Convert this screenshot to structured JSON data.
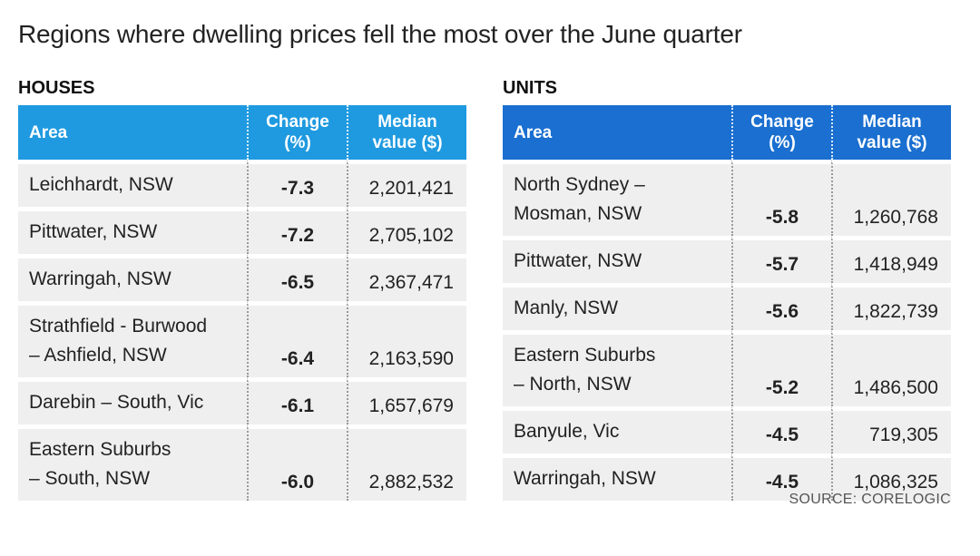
{
  "title": "Regions where dwelling prices fell the most over the June quarter",
  "houses": {
    "label": "HOUSES",
    "columns": [
      "Area",
      "Change (%)",
      "Median value ($)"
    ]
  },
  "units": {
    "label": "UNITS",
    "columns": [
      "Area",
      "Change (%)",
      "Median value ($)"
    ]
  },
  "source": "SOURCE: CORELOGIC",
  "colors": {
    "houses_header": "#1f9ae0",
    "units_header": "#1a6fd0",
    "row_bg": "#efefef"
  },
  "chart_data": [
    {
      "type": "table",
      "title": "HOUSES",
      "headers": [
        "Area",
        "Change (%)",
        "Median value ($)"
      ],
      "rows": [
        {
          "area": [
            "Leichhardt, NSW"
          ],
          "change": "-7.3",
          "median": "2,201,421"
        },
        {
          "area": [
            "Pittwater, NSW"
          ],
          "change": "-7.2",
          "median": "2,705,102"
        },
        {
          "area": [
            "Warringah, NSW"
          ],
          "change": "-6.5",
          "median": "2,367,471"
        },
        {
          "area": [
            "Strathfield - Burwood",
            "– Ashfield, NSW"
          ],
          "change": "-6.4",
          "median": "2,163,590"
        },
        {
          "area": [
            "Darebin – South, Vic"
          ],
          "change": "-6.1",
          "median": "1,657,679"
        },
        {
          "area": [
            "Eastern Suburbs",
            "– South, NSW"
          ],
          "change": "-6.0",
          "median": "2,882,532"
        }
      ]
    },
    {
      "type": "table",
      "title": "UNITS",
      "headers": [
        "Area",
        "Change (%)",
        "Median value ($)"
      ],
      "rows": [
        {
          "area": [
            "North Sydney –",
            "Mosman, NSW"
          ],
          "change": "-5.8",
          "median": "1,260,768"
        },
        {
          "area": [
            "Pittwater, NSW"
          ],
          "change": "-5.7",
          "median": "1,418,949"
        },
        {
          "area": [
            "Manly, NSW"
          ],
          "change": "-5.6",
          "median": "1,822,739"
        },
        {
          "area": [
            "Eastern Suburbs",
            "– North, NSW"
          ],
          "change": "-5.2",
          "median": "1,486,500"
        },
        {
          "area": [
            "Banyule, Vic"
          ],
          "change": "-4.5",
          "median": "719,305"
        },
        {
          "area": [
            "Warringah, NSW"
          ],
          "change": "-4.5",
          "median": "1,086,325"
        }
      ]
    }
  ]
}
